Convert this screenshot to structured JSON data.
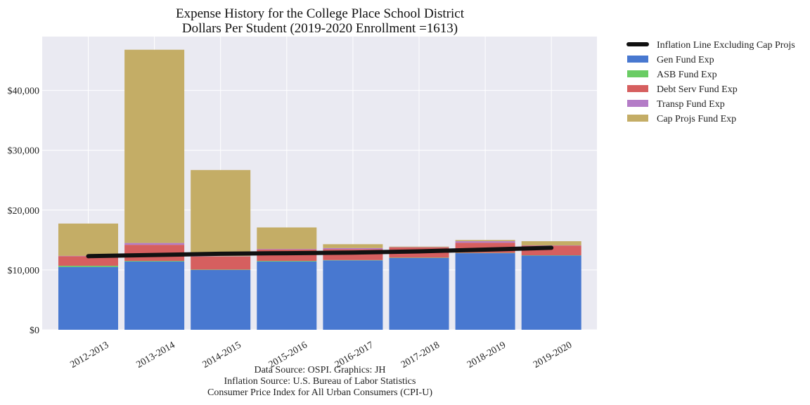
{
  "chart_data": {
    "type": "bar",
    "stacked": true,
    "title": "Expense History for the College Place School District",
    "subtitle": "Dollars Per Student (2019-2020 Enrollment =1613)",
    "xlabel": "",
    "ylabel": "",
    "categories": [
      "2012-2013",
      "2013-2014",
      "2014-2015",
      "2015-2016",
      "2016-2017",
      "2017-2018",
      "2018-2019",
      "2019-2020"
    ],
    "ylim": [
      0,
      49000
    ],
    "yticks": [
      0,
      10000,
      20000,
      30000,
      40000
    ],
    "ytick_labels": [
      "$0",
      "$10,000",
      "$20,000",
      "$30,000",
      "$40,000"
    ],
    "grid": true,
    "legend_position": "outside-right",
    "series": [
      {
        "name": "Gen Fund Exp",
        "color": "#4878d0",
        "values": [
          10500,
          11400,
          10000,
          11400,
          11600,
          12000,
          12800,
          12400
        ]
      },
      {
        "name": "ASB Fund Exp",
        "color": "#6acc64",
        "values": [
          200,
          100,
          50,
          100,
          50,
          50,
          50,
          50
        ]
      },
      {
        "name": "Debt Serv Fund Exp",
        "color": "#d65f5f",
        "values": [
          1600,
          2700,
          2200,
          1900,
          1800,
          1700,
          1700,
          1600
        ]
      },
      {
        "name": "Transp Fund Exp",
        "color": "#b47cc7",
        "values": [
          50,
          300,
          50,
          100,
          200,
          50,
          250,
          50
        ]
      },
      {
        "name": "Cap Projs Fund Exp",
        "color": "#c4ad66",
        "values": [
          5400,
          32300,
          14400,
          3600,
          650,
          100,
          200,
          700
        ]
      }
    ],
    "line": {
      "name": "Inflation Line Excluding Cap Projs",
      "color": "#111111",
      "values": [
        12300,
        12500,
        12700,
        12800,
        12900,
        13100,
        13400,
        13700
      ]
    },
    "source_lines": [
      "Data Source: OSPI. Graphics: JH",
      "Inflation Source: U.S. Bureau of Labor Statistics",
      "Consumer Price Index for All Urban Consumers (CPI-U)"
    ]
  }
}
